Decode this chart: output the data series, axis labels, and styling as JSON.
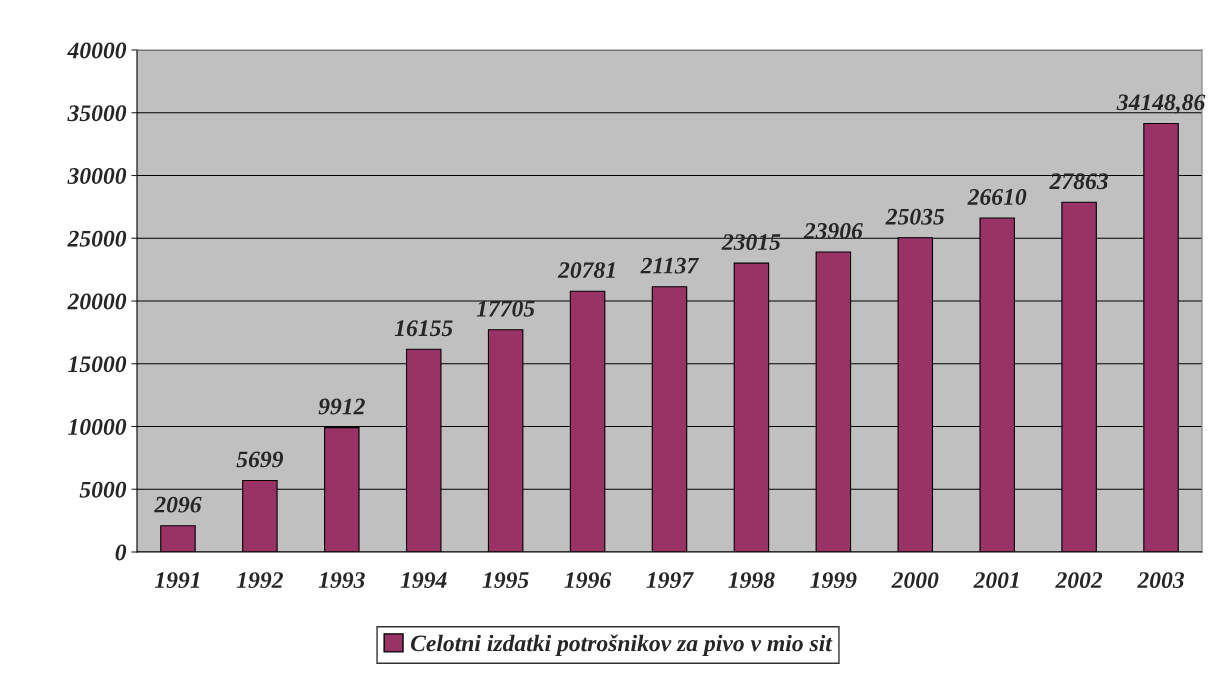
{
  "chart_data": {
    "type": "bar",
    "categories": [
      "1991",
      "1992",
      "1993",
      "1994",
      "1995",
      "1996",
      "1997",
      "1998",
      "1999",
      "2000",
      "2001",
      "2002",
      "2003"
    ],
    "series": [
      {
        "name": "Celotni izdatki potrošnikov za pivo v mio sit",
        "color": "#993366",
        "values": [
          2096,
          5699,
          9912,
          16155,
          17705,
          20781,
          21137,
          23015,
          23906,
          25035,
          26610,
          27863,
          34148.86
        ],
        "value_labels": [
          "2096",
          "5699",
          "9912",
          "16155",
          "17705",
          "20781",
          "21137",
          "23015",
          "23906",
          "25035",
          "26610",
          "27863",
          "34148,86"
        ]
      }
    ],
    "ylim": [
      0,
      40000
    ],
    "yticks": [
      0,
      5000,
      10000,
      15000,
      20000,
      25000,
      30000,
      35000,
      40000
    ],
    "grid": "y",
    "legend": "bottom"
  }
}
